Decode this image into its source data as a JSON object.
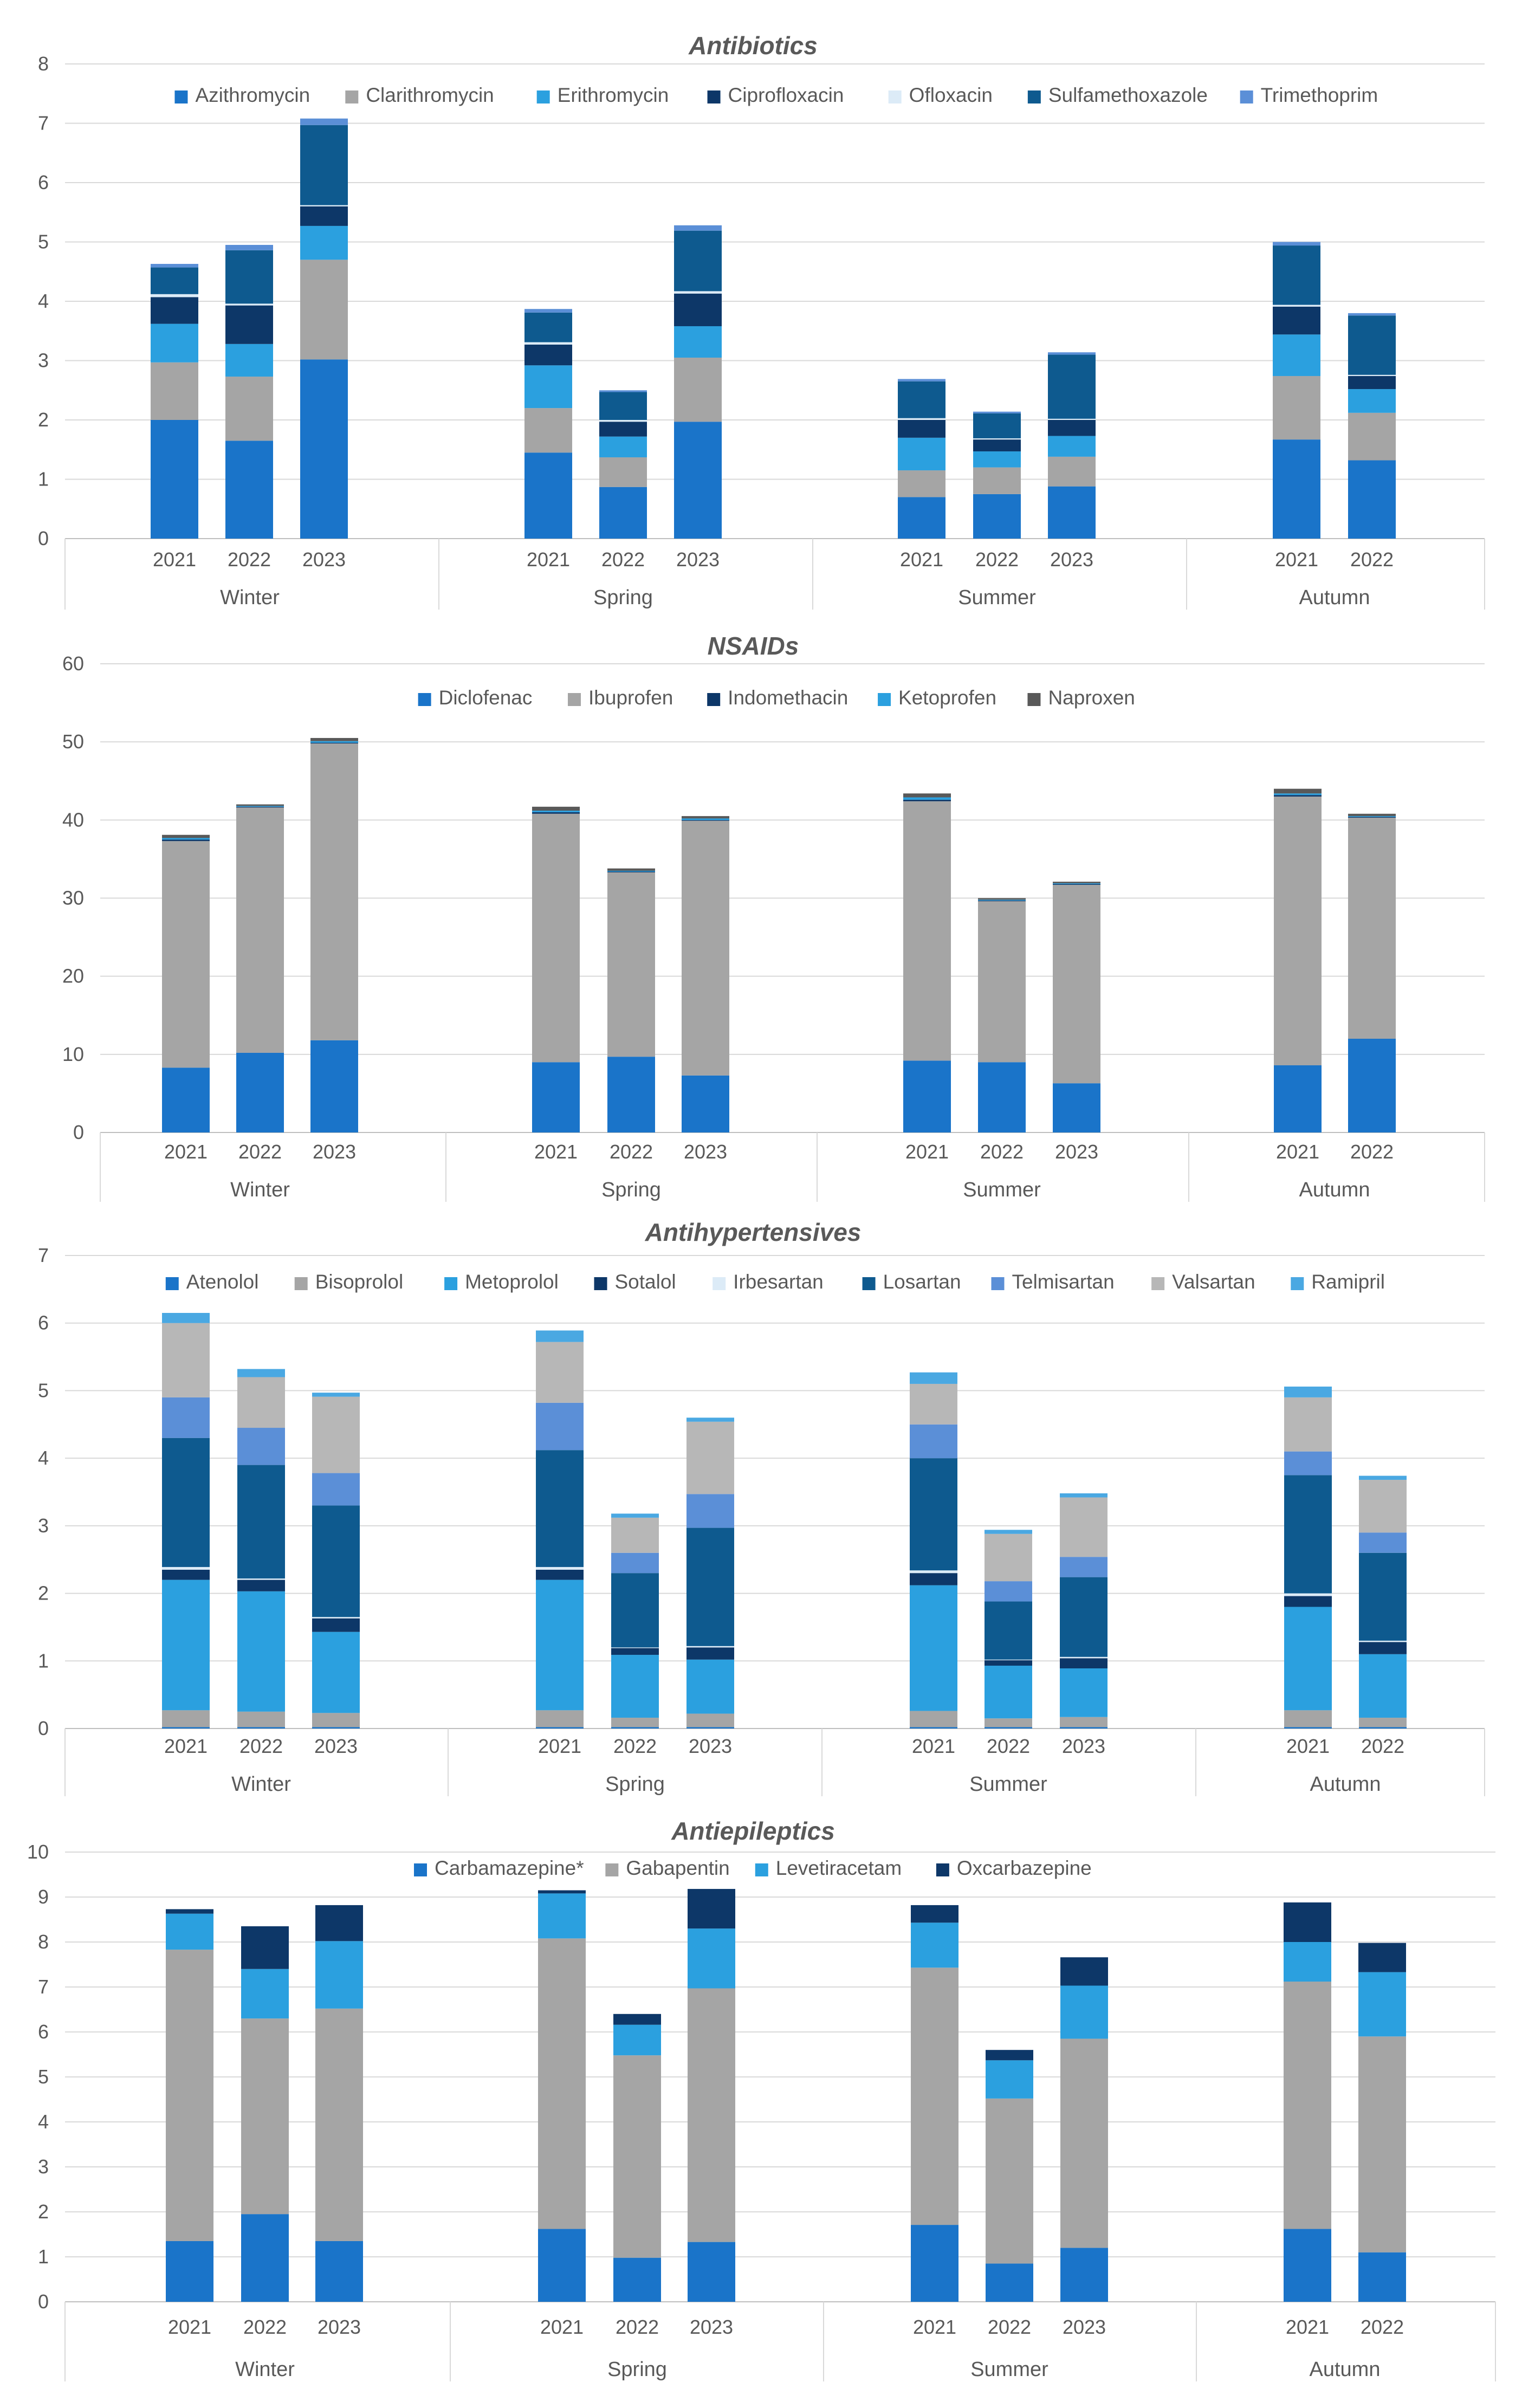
{
  "chart_data": [
    {
      "type": "bar",
      "stacked": true,
      "title": "Antibiotics",
      "xlabel": "",
      "ylabel": "",
      "ylim": [
        0,
        8
      ],
      "yticks": [
        0,
        1,
        2,
        3,
        4,
        5,
        6,
        7,
        8
      ],
      "grid": true,
      "legend_position": "top",
      "groups": [
        "Winter",
        "Spring",
        "Summer",
        "Autumn"
      ],
      "group_categories": [
        [
          "2021",
          "2022",
          "2023"
        ],
        [
          "2021",
          "2022",
          "2023"
        ],
        [
          "2021",
          "2022",
          "2023"
        ],
        [
          "2021",
          "2022"
        ]
      ],
      "series": [
        {
          "name": "Azithromycin",
          "color": "#1a74c9",
          "values": [
            2.0,
            1.65,
            3.02,
            1.45,
            0.87,
            1.97,
            0.7,
            0.75,
            0.88,
            1.67,
            1.32
          ]
        },
        {
          "name": "Clarithromycin",
          "color": "#a5a5a5",
          "values": [
            0.97,
            1.08,
            1.68,
            0.75,
            0.5,
            1.08,
            0.45,
            0.45,
            0.5,
            1.07,
            0.8
          ]
        },
        {
          "name": "Erithromycin",
          "color": "#2ba0df",
          "values": [
            0.65,
            0.55,
            0.57,
            0.72,
            0.35,
            0.53,
            0.55,
            0.27,
            0.35,
            0.7,
            0.4
          ]
        },
        {
          "name": "Ciprofloxacin",
          "color": "#0d3768",
          "values": [
            0.45,
            0.65,
            0.33,
            0.35,
            0.25,
            0.55,
            0.3,
            0.2,
            0.27,
            0.47,
            0.22
          ]
        },
        {
          "name": "Ofloxacin",
          "color": "#dcebf7",
          "values": [
            0.05,
            0.03,
            0.02,
            0.04,
            0.03,
            0.04,
            0.03,
            0.02,
            0.02,
            0.03,
            0.02
          ]
        },
        {
          "name": "Sulfamethoxazole",
          "color": "#0e5a8f",
          "values": [
            0.45,
            0.9,
            1.35,
            0.5,
            0.47,
            1.02,
            0.62,
            0.42,
            1.08,
            1.0,
            1.0
          ]
        },
        {
          "name": "Trimethoprim",
          "color": "#5b8fd7",
          "values": [
            0.06,
            0.09,
            0.11,
            0.06,
            0.03,
            0.09,
            0.04,
            0.03,
            0.04,
            0.06,
            0.04
          ]
        }
      ]
    },
    {
      "type": "bar",
      "stacked": true,
      "title": "NSAIDs",
      "xlabel": "",
      "ylabel": "",
      "ylim": [
        0,
        60
      ],
      "yticks": [
        0,
        10,
        20,
        30,
        40,
        50,
        60
      ],
      "grid": true,
      "legend_position": "top",
      "groups": [
        "Winter",
        "Spring",
        "Summer",
        "Autumn"
      ],
      "group_categories": [
        [
          "2021",
          "2022",
          "2023"
        ],
        [
          "2021",
          "2022",
          "2023"
        ],
        [
          "2021",
          "2022",
          "2023"
        ],
        [
          "2021",
          "2022"
        ]
      ],
      "series": [
        {
          "name": "Diclofenac",
          "color": "#1a74c9",
          "values": [
            8.3,
            10.2,
            11.8,
            9.0,
            9.7,
            7.3,
            9.2,
            9.0,
            6.3,
            8.6,
            12.0
          ]
        },
        {
          "name": "Ibuprofen",
          "color": "#a5a5a5",
          "values": [
            29.0,
            31.4,
            38.0,
            31.8,
            23.6,
            32.6,
            33.2,
            20.6,
            25.4,
            34.4,
            28.3
          ]
        },
        {
          "name": "Indomethacin",
          "color": "#0d3768",
          "values": [
            0.2,
            0.1,
            0.1,
            0.2,
            0.1,
            0.1,
            0.2,
            0.1,
            0.1,
            0.2,
            0.1
          ]
        },
        {
          "name": "Ketoprofen",
          "color": "#2ba0df",
          "values": [
            0.2,
            0.1,
            0.2,
            0.2,
            0.1,
            0.2,
            0.3,
            0.1,
            0.1,
            0.2,
            0.1
          ]
        },
        {
          "name": "Naproxen",
          "color": "#595959",
          "values": [
            0.4,
            0.2,
            0.4,
            0.5,
            0.3,
            0.3,
            0.5,
            0.2,
            0.2,
            0.6,
            0.3
          ]
        }
      ]
    },
    {
      "type": "bar",
      "stacked": true,
      "title": "Antihypertensives",
      "xlabel": "",
      "ylabel": "",
      "ylim": [
        0,
        7
      ],
      "yticks": [
        0,
        1,
        2,
        3,
        4,
        5,
        6,
        7
      ],
      "grid": true,
      "legend_position": "top",
      "groups": [
        "Winter",
        "Spring",
        "Summer",
        "Autumn"
      ],
      "group_categories": [
        [
          "2021",
          "2022",
          "2023"
        ],
        [
          "2021",
          "2022",
          "2023"
        ],
        [
          "2021",
          "2022",
          "2023"
        ],
        [
          "2021",
          "2022"
        ]
      ],
      "series": [
        {
          "name": "Atenolol",
          "color": "#1a74c9",
          "values": [
            0.02,
            0.02,
            0.02,
            0.02,
            0.02,
            0.02,
            0.02,
            0.02,
            0.02,
            0.02,
            0.02
          ]
        },
        {
          "name": "Bisoprolol",
          "color": "#a5a5a5",
          "values": [
            0.25,
            0.23,
            0.21,
            0.25,
            0.14,
            0.2,
            0.24,
            0.13,
            0.15,
            0.25,
            0.14
          ]
        },
        {
          "name": "Metoprolol",
          "color": "#2ba0df",
          "values": [
            1.93,
            1.78,
            1.2,
            1.93,
            0.93,
            0.8,
            1.86,
            0.78,
            0.72,
            1.53,
            0.94
          ]
        },
        {
          "name": "Sotalol",
          "color": "#0d3768",
          "values": [
            0.15,
            0.17,
            0.2,
            0.15,
            0.1,
            0.18,
            0.18,
            0.08,
            0.15,
            0.16,
            0.18
          ]
        },
        {
          "name": "Irbesartan",
          "color": "#dcebf7",
          "values": [
            0.04,
            0.02,
            0.02,
            0.04,
            0.01,
            0.02,
            0.04,
            0.01,
            0.02,
            0.04,
            0.02
          ]
        },
        {
          "name": "Losartan",
          "color": "#0e5a8f",
          "values": [
            1.91,
            1.68,
            1.65,
            1.73,
            1.1,
            1.75,
            1.66,
            0.86,
            1.18,
            1.75,
            1.3
          ]
        },
        {
          "name": "Telmisartan",
          "color": "#5b8fd7",
          "values": [
            0.6,
            0.55,
            0.48,
            0.7,
            0.3,
            0.5,
            0.5,
            0.3,
            0.3,
            0.35,
            0.3
          ]
        },
        {
          "name": "Valsartan",
          "color": "#b7b7b7",
          "values": [
            1.1,
            0.75,
            1.13,
            0.9,
            0.52,
            1.07,
            0.6,
            0.7,
            0.88,
            0.8,
            0.78
          ]
        },
        {
          "name": "Ramipril",
          "color": "#4aa8e2",
          "values": [
            0.15,
            0.12,
            0.06,
            0.17,
            0.06,
            0.06,
            0.17,
            0.06,
            0.06,
            0.16,
            0.06
          ]
        }
      ]
    },
    {
      "type": "bar",
      "stacked": true,
      "title": "Antiepileptics",
      "xlabel": "",
      "ylabel": "",
      "ylim": [
        0,
        10
      ],
      "yticks": [
        0,
        1,
        2,
        3,
        4,
        5,
        6,
        7,
        8,
        9,
        10
      ],
      "grid": true,
      "legend_position": "top",
      "groups": [
        "Winter",
        "Spring",
        "Summer",
        "Autumn"
      ],
      "group_categories": [
        [
          "2021",
          "2022",
          "2023"
        ],
        [
          "2021",
          "2022",
          "2023"
        ],
        [
          "2021",
          "2022",
          "2023"
        ],
        [
          "2021",
          "2022"
        ]
      ],
      "series": [
        {
          "name": "Carbamazepine*",
          "color": "#1a74c9",
          "values": [
            1.35,
            1.95,
            1.35,
            1.62,
            0.98,
            1.33,
            1.71,
            0.85,
            1.2,
            1.62,
            1.1
          ]
        },
        {
          "name": "Gabapentin",
          "color": "#a5a5a5",
          "values": [
            6.48,
            4.35,
            5.17,
            6.46,
            4.5,
            5.64,
            5.72,
            3.67,
            4.65,
            5.5,
            4.8
          ]
        },
        {
          "name": "Levetiracetam",
          "color": "#2ba0df",
          "values": [
            0.8,
            1.1,
            1.5,
            1.0,
            0.68,
            1.33,
            1.0,
            0.85,
            1.18,
            0.88,
            1.43
          ]
        },
        {
          "name": "Oxcarbazepine",
          "color": "#0d3768",
          "values": [
            0.1,
            0.95,
            0.8,
            0.07,
            0.24,
            0.88,
            0.39,
            0.23,
            0.63,
            0.88,
            0.65
          ]
        }
      ]
    }
  ]
}
